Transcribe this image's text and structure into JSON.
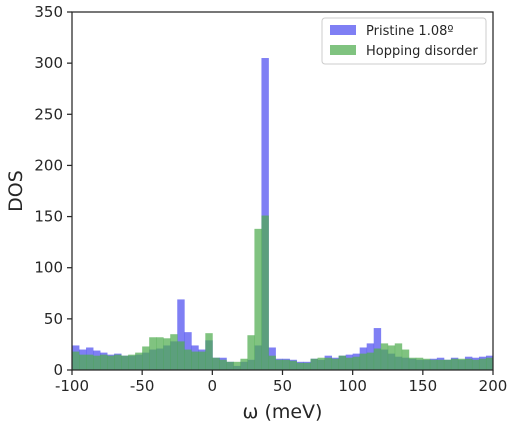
{
  "chart_data": {
    "type": "histogram",
    "xlabel": "ω (meV)",
    "ylabel": "DOS",
    "xlim": [
      -100,
      200
    ],
    "ylim": [
      0,
      350
    ],
    "xticks": [
      -100,
      -50,
      0,
      50,
      100,
      150,
      200
    ],
    "yticks": [
      0,
      50,
      100,
      150,
      200,
      250,
      300,
      350
    ],
    "grid": false,
    "legend_position": "top-right",
    "bin_start": -100,
    "bin_width": 5,
    "series": [
      {
        "name": "Pristine 1.08º",
        "color": "#4e4ef0",
        "opacity": 0.72,
        "values": [
          24,
          20,
          22,
          19,
          17,
          15,
          16,
          14,
          14,
          15,
          17,
          20,
          21,
          24,
          28,
          69,
          37,
          24,
          20,
          29,
          12,
          12,
          8,
          4,
          8,
          10,
          24,
          305,
          22,
          11,
          11,
          10,
          8,
          8,
          11,
          10,
          14,
          12,
          14,
          15,
          16,
          22,
          26,
          41,
          20,
          16,
          13,
          12,
          11,
          10,
          10,
          11,
          12,
          10,
          12,
          10,
          13,
          12,
          13,
          14
        ]
      },
      {
        "name": "Hopping disorder",
        "color": "#4fac4f",
        "opacity": 0.72,
        "values": [
          18,
          15,
          15,
          14,
          15,
          14,
          15,
          14,
          15,
          17,
          23,
          32,
          32,
          31,
          35,
          28,
          20,
          18,
          18,
          36,
          12,
          10,
          8,
          8,
          11,
          34,
          138,
          151,
          14,
          10,
          10,
          9,
          7,
          7,
          11,
          12,
          12,
          11,
          14,
          12,
          13,
          16,
          17,
          21,
          26,
          24,
          26,
          20,
          12,
          12,
          11,
          10,
          10,
          10,
          11,
          11,
          11,
          10,
          11,
          12
        ]
      }
    ]
  }
}
